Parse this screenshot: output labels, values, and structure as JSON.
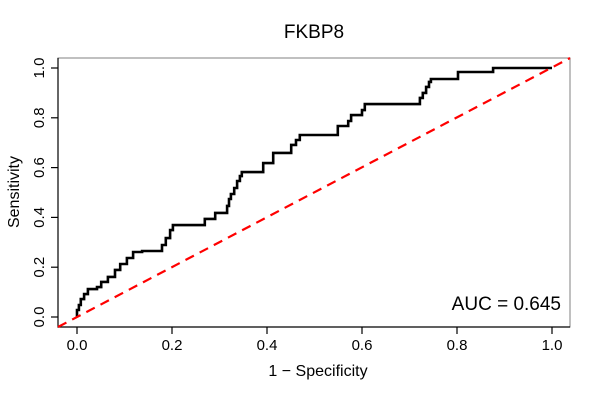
{
  "chart_data": {
    "type": "line",
    "subtype": "roc-step-curve",
    "title": "FKBP8",
    "xlabel": "1 − Specificity",
    "ylabel": "Sensitivity",
    "xlim": [
      0,
      1
    ],
    "ylim": [
      0,
      1
    ],
    "grid": false,
    "legend": "none",
    "background": "#ffffff",
    "frame_color": "#808080",
    "axis_color": "#000000",
    "x_ticks": [
      0,
      0.2,
      0.4,
      0.6,
      0.8,
      1.0
    ],
    "y_ticks": [
      0,
      0.2,
      0.4,
      0.6,
      0.8,
      1.0
    ],
    "x_tick_labels": [
      "0.0",
      "0.2",
      "0.4",
      "0.6",
      "0.8",
      "1.0"
    ],
    "y_tick_labels": [
      "0.0",
      "0.2",
      "0.4",
      "0.6",
      "0.8",
      "1.0"
    ],
    "annotation": {
      "text": "AUC = 0.645",
      "auc_value": 0.645,
      "position": "bottom-right"
    },
    "series": [
      {
        "name": "ROC curve",
        "draw": "step-polyline",
        "color": "#000000",
        "line_width": 2.6,
        "points": [
          [
            0,
            0
          ],
          [
            0,
            0.028
          ],
          [
            0.004,
            0.028
          ],
          [
            0.004,
            0.048
          ],
          [
            0.008,
            0.048
          ],
          [
            0.008,
            0.072
          ],
          [
            0.015,
            0.072
          ],
          [
            0.015,
            0.092
          ],
          [
            0.023,
            0.092
          ],
          [
            0.023,
            0.112
          ],
          [
            0.042,
            0.112
          ],
          [
            0.042,
            0.12
          ],
          [
            0.051,
            0.12
          ],
          [
            0.051,
            0.141
          ],
          [
            0.065,
            0.141
          ],
          [
            0.065,
            0.161
          ],
          [
            0.08,
            0.161
          ],
          [
            0.08,
            0.189
          ],
          [
            0.091,
            0.189
          ],
          [
            0.091,
            0.213
          ],
          [
            0.105,
            0.213
          ],
          [
            0.105,
            0.237
          ],
          [
            0.118,
            0.237
          ],
          [
            0.118,
            0.261
          ],
          [
            0.137,
            0.261
          ],
          [
            0.137,
            0.265
          ],
          [
            0.179,
            0.265
          ],
          [
            0.179,
            0.289
          ],
          [
            0.187,
            0.289
          ],
          [
            0.187,
            0.317
          ],
          [
            0.196,
            0.317
          ],
          [
            0.196,
            0.349
          ],
          [
            0.202,
            0.349
          ],
          [
            0.202,
            0.369
          ],
          [
            0.269,
            0.369
          ],
          [
            0.269,
            0.394
          ],
          [
            0.291,
            0.394
          ],
          [
            0.291,
            0.418
          ],
          [
            0.316,
            0.418
          ],
          [
            0.316,
            0.446
          ],
          [
            0.32,
            0.446
          ],
          [
            0.32,
            0.474
          ],
          [
            0.324,
            0.474
          ],
          [
            0.324,
            0.494
          ],
          [
            0.331,
            0.494
          ],
          [
            0.331,
            0.518
          ],
          [
            0.337,
            0.518
          ],
          [
            0.337,
            0.546
          ],
          [
            0.343,
            0.546
          ],
          [
            0.343,
            0.566
          ],
          [
            0.347,
            0.566
          ],
          [
            0.347,
            0.582
          ],
          [
            0.392,
            0.582
          ],
          [
            0.392,
            0.618
          ],
          [
            0.413,
            0.618
          ],
          [
            0.413,
            0.659
          ],
          [
            0.451,
            0.659
          ],
          [
            0.451,
            0.691
          ],
          [
            0.461,
            0.691
          ],
          [
            0.461,
            0.711
          ],
          [
            0.469,
            0.711
          ],
          [
            0.469,
            0.731
          ],
          [
            0.549,
            0.731
          ],
          [
            0.549,
            0.767
          ],
          [
            0.571,
            0.767
          ],
          [
            0.571,
            0.787
          ],
          [
            0.577,
            0.787
          ],
          [
            0.577,
            0.811
          ],
          [
            0.6,
            0.811
          ],
          [
            0.6,
            0.831
          ],
          [
            0.606,
            0.831
          ],
          [
            0.606,
            0.855
          ],
          [
            0.722,
            0.855
          ],
          [
            0.722,
            0.88
          ],
          [
            0.728,
            0.88
          ],
          [
            0.728,
            0.9
          ],
          [
            0.735,
            0.9
          ],
          [
            0.735,
            0.924
          ],
          [
            0.741,
            0.924
          ],
          [
            0.741,
            0.944
          ],
          [
            0.745,
            0.944
          ],
          [
            0.745,
            0.956
          ],
          [
            0.802,
            0.956
          ],
          [
            0.802,
            0.984
          ],
          [
            0.876,
            0.984
          ],
          [
            0.876,
            1
          ],
          [
            1,
            1
          ]
        ]
      },
      {
        "name": "chance line",
        "draw": "diagonal",
        "color": "#ff0000",
        "line_style": "dashed",
        "line_width": 2.2,
        "from": [
          0,
          0
        ],
        "to": [
          1,
          1
        ]
      }
    ]
  }
}
